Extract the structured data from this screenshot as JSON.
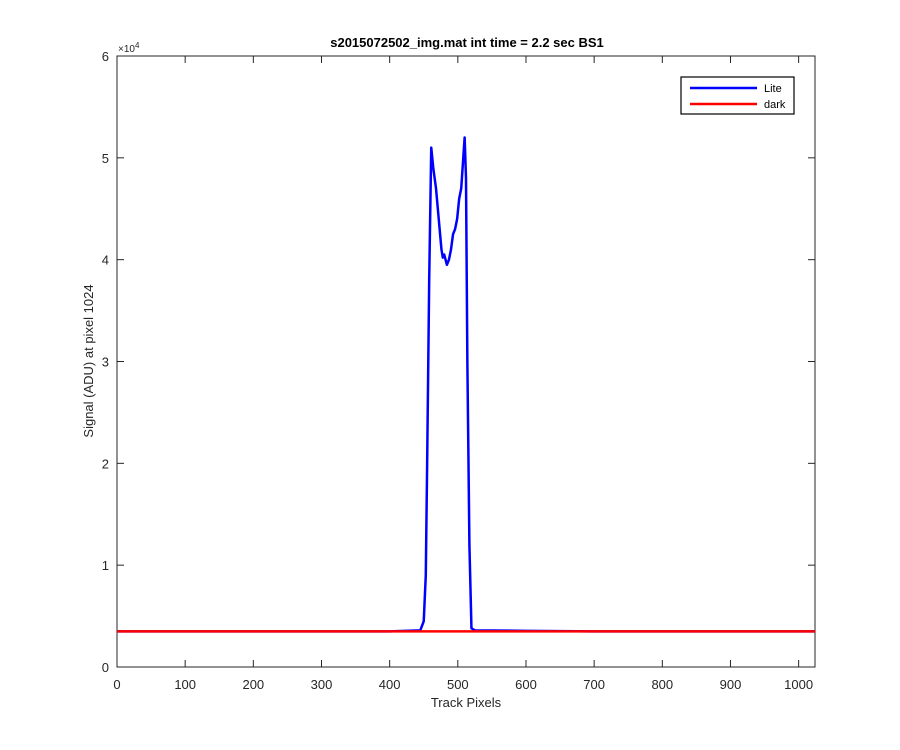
{
  "chart_data": {
    "type": "line",
    "title": "s2015072502_img.mat int time = 2.2 sec   BS1",
    "xlabel": "Track Pixels",
    "ylabel": "Signal (ADU) at pixel 1024",
    "xlim": [
      0,
      1024
    ],
    "ylim": [
      0,
      60000
    ],
    "xticks": [
      "0",
      "100",
      "200",
      "300",
      "400",
      "500",
      "600",
      "700",
      "800",
      "900",
      "1000"
    ],
    "yticks": [
      "0",
      "1",
      "2",
      "3",
      "4",
      "5",
      "6"
    ],
    "y_exponent_label": "×10",
    "y_exponent_power": "4",
    "legend": {
      "position": "top-right",
      "entries": [
        "Lite",
        "dark"
      ]
    },
    "grid": false,
    "series": [
      {
        "name": "Lite",
        "color": "#0000ff",
        "x": [
          0,
          100,
          200,
          300,
          400,
          445,
          450,
          453,
          455,
          458,
          461,
          464,
          468,
          472,
          476,
          478,
          480,
          484,
          487,
          490,
          493,
          496,
          499,
          502,
          505,
          508,
          510,
          512,
          514,
          517,
          520,
          525,
          600,
          700,
          800,
          900,
          1024
        ],
        "y": [
          3500,
          3500,
          3500,
          3500,
          3500,
          3600,
          4500,
          9000,
          20000,
          38000,
          51000,
          49000,
          47000,
          44000,
          41000,
          40200,
          40500,
          39500,
          40000,
          41000,
          42500,
          43000,
          44000,
          46000,
          47000,
          50000,
          52000,
          48000,
          30000,
          12000,
          3800,
          3600,
          3550,
          3500,
          3500,
          3500,
          3500
        ]
      },
      {
        "name": "dark",
        "color": "#ff0000",
        "x": [
          0,
          100,
          200,
          300,
          400,
          500,
          600,
          700,
          800,
          900,
          1024
        ],
        "y": [
          3500,
          3500,
          3500,
          3500,
          3500,
          3500,
          3500,
          3500,
          3500,
          3500,
          3500
        ]
      }
    ]
  }
}
